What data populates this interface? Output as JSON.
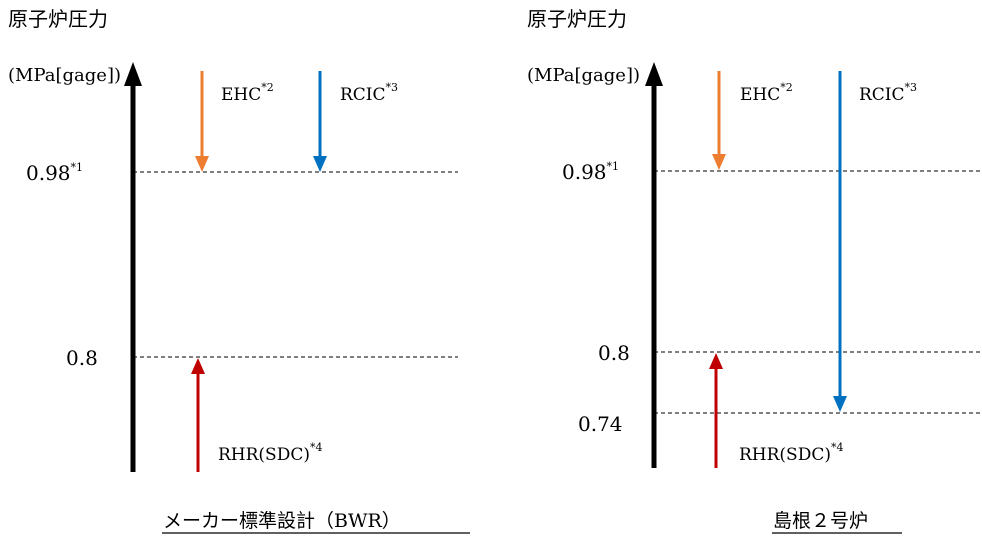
{
  "panels": [
    {
      "title": "原子炉圧力",
      "unit": "(MPa[gage])",
      "ticks": [
        {
          "label": "0.98",
          "sup": "*1",
          "value": 0.98
        },
        {
          "label": "0.8",
          "sup": "",
          "value": 0.8
        }
      ],
      "arrows": [
        {
          "name": "EHC",
          "sup": "*2",
          "color": "#ed7d31",
          "direction": "down",
          "target": 0.98
        },
        {
          "name": "RCIC",
          "sup": "*3",
          "color": "#0070c0",
          "direction": "down",
          "target": 0.98
        },
        {
          "name": "RHR(SDC)",
          "sup": "*4",
          "color": "#c00000",
          "direction": "up",
          "target": 0.8
        }
      ],
      "caption": "メーカー標準設計（BWR）"
    },
    {
      "title": "原子炉圧力",
      "unit": "(MPa[gage])",
      "ticks": [
        {
          "label": "0.98",
          "sup": "*1",
          "value": 0.98
        },
        {
          "label": "0.8",
          "sup": "",
          "value": 0.8
        },
        {
          "label": "0.74",
          "sup": "",
          "value": 0.74
        }
      ],
      "arrows": [
        {
          "name": "EHC",
          "sup": "*2",
          "color": "#ed7d31",
          "direction": "down",
          "target": 0.98
        },
        {
          "name": "RCIC",
          "sup": "*3",
          "color": "#0070c0",
          "direction": "down",
          "target": 0.74
        },
        {
          "name": "RHR(SDC)",
          "sup": "*4",
          "color": "#c00000",
          "direction": "up",
          "target": 0.8
        }
      ],
      "caption": "島根２号炉"
    }
  ]
}
